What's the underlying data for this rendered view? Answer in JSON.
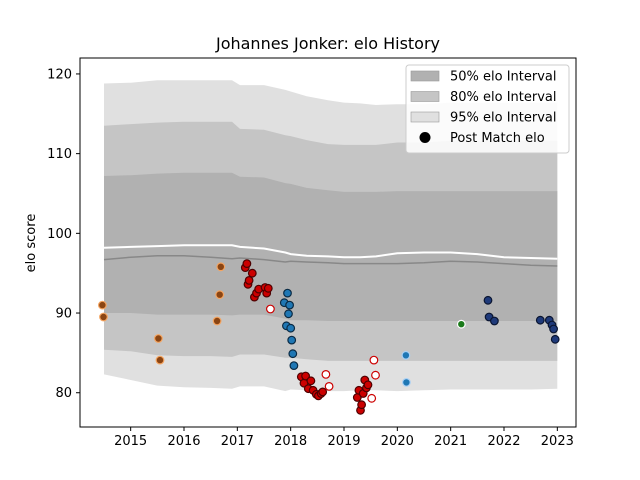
{
  "chart_data": {
    "type": "scatter",
    "title": "Johannes Jonker: elo History",
    "xlabel": "",
    "ylabel": "elo score",
    "xlim": [
      2014.05,
      2023.35
    ],
    "ylim": [
      75.7,
      122
    ],
    "x_ticks": [
      2015,
      2016,
      2017,
      2018,
      2019,
      2020,
      2021,
      2022,
      2023
    ],
    "y_ticks": [
      80,
      90,
      100,
      110,
      120
    ],
    "grid": false,
    "legend_position": "top-right",
    "legend": [
      {
        "label": "50% elo Interval",
        "kind": "patch",
        "color": "#b1b1b1"
      },
      {
        "label": "80% elo Interval",
        "kind": "patch",
        "color": "#c5c5c5"
      },
      {
        "label": "95% elo Interval",
        "kind": "patch",
        "color": "#e0e0e0"
      },
      {
        "label": "Post Match elo",
        "kind": "marker",
        "color": "#000000"
      }
    ],
    "colors": {
      "band50": "#b1b1b1",
      "band80": "#c5c5c5",
      "band95": "#e0e0e0",
      "mean_line": "#ffffff",
      "median_line": "#888888"
    },
    "x_band": [
      2014.5,
      2015.0,
      2015.5,
      2016.0,
      2016.5,
      2016.9,
      2017.05,
      2017.5,
      2017.9,
      2018.0,
      2018.3,
      2018.7,
      2019.0,
      2019.3,
      2019.6,
      2020.0,
      2020.5,
      2021.0,
      2021.5,
      2022.0,
      2022.5,
      2023.0
    ],
    "series": [
      {
        "name": "95% elo Interval",
        "lower": [
          82.3,
          81.6,
          80.9,
          80.7,
          80.6,
          80.5,
          80.8,
          80.8,
          80.2,
          80.4,
          80.3,
          80.2,
          80.2,
          80.3,
          80.3,
          80.2,
          80.3,
          80.4,
          80.4,
          80.4,
          80.4,
          80.5
        ],
        "upper": [
          118.8,
          118.9,
          119.2,
          119.2,
          119.2,
          119.2,
          118.6,
          118.6,
          118.0,
          117.8,
          117.2,
          116.7,
          116.4,
          116.3,
          116.1,
          116.2,
          116.2,
          116.4,
          116.4,
          116.4,
          116.4,
          116.4
        ]
      },
      {
        "name": "80% elo Interval",
        "lower": [
          85.4,
          85.2,
          84.7,
          84.6,
          84.6,
          84.5,
          84.8,
          84.8,
          84.4,
          84.4,
          84.2,
          84.0,
          84.0,
          84.0,
          84.0,
          84.0,
          84.0,
          84.0,
          84.0,
          84.0,
          84.0,
          84.0
        ],
        "upper": [
          113.5,
          113.7,
          113.9,
          114.0,
          114.0,
          114.0,
          113.1,
          113.0,
          112.3,
          112.2,
          111.7,
          111.2,
          111.1,
          111.1,
          111.1,
          111.4,
          111.4,
          111.6,
          111.6,
          111.6,
          111.6,
          111.6
        ]
      },
      {
        "name": "50% elo Interval",
        "lower": [
          90.0,
          90.0,
          89.8,
          89.8,
          89.8,
          89.7,
          89.8,
          89.8,
          89.3,
          89.1,
          89.1,
          89.0,
          89.0,
          89.0,
          89.0,
          89.0,
          89.0,
          89.0,
          89.0,
          89.0,
          89.0,
          89.0
        ],
        "upper": [
          107.2,
          107.3,
          107.5,
          107.6,
          107.6,
          107.6,
          107.1,
          107.0,
          106.3,
          106.2,
          105.7,
          105.4,
          105.2,
          105.2,
          105.2,
          105.3,
          105.3,
          105.3,
          105.3,
          105.3,
          105.3,
          105.3
        ]
      },
      {
        "name": "",
        "line": "mean",
        "values": [
          98.2,
          98.3,
          98.4,
          98.5,
          98.5,
          98.5,
          98.3,
          98.1,
          97.6,
          97.4,
          97.2,
          97.1,
          97.0,
          97.0,
          97.1,
          97.5,
          97.6,
          97.6,
          97.4,
          97.0,
          96.9,
          96.8
        ]
      },
      {
        "name": "",
        "line": "median",
        "values": [
          96.7,
          97.0,
          97.2,
          97.2,
          97.0,
          96.8,
          96.9,
          96.7,
          96.4,
          96.5,
          96.4,
          96.3,
          96.2,
          96.2,
          96.2,
          96.2,
          96.3,
          96.5,
          96.4,
          96.2,
          96.0,
          95.9
        ]
      }
    ],
    "points": [
      {
        "x": 2014.47,
        "y": 91.0,
        "fill": "#8B4513",
        "edge": "#f4a460"
      },
      {
        "x": 2014.49,
        "y": 89.5,
        "fill": "#8B4513",
        "edge": "#f4a460"
      },
      {
        "x": 2015.52,
        "y": 86.8,
        "fill": "#8B4513",
        "edge": "#f4a460"
      },
      {
        "x": 2015.55,
        "y": 84.1,
        "fill": "#8B4513",
        "edge": "#f4a460"
      },
      {
        "x": 2016.62,
        "y": 89.0,
        "fill": "#8B4513",
        "edge": "#f4a460"
      },
      {
        "x": 2016.67,
        "y": 92.3,
        "fill": "#8B4513",
        "edge": "#f4a460"
      },
      {
        "x": 2016.69,
        "y": 95.8,
        "fill": "#8B4513",
        "edge": "#f4a460"
      },
      {
        "x": 2017.15,
        "y": 95.7,
        "fill": "#cc0000",
        "edge": "#4d0000"
      },
      {
        "x": 2017.18,
        "y": 96.2,
        "fill": "#cc0000",
        "edge": "#4d0000"
      },
      {
        "x": 2017.2,
        "y": 93.6,
        "fill": "#cc0000",
        "edge": "#4d0000"
      },
      {
        "x": 2017.22,
        "y": 94.1,
        "fill": "#cc0000",
        "edge": "#4d0000"
      },
      {
        "x": 2017.28,
        "y": 95.0,
        "fill": "#cc0000",
        "edge": "#4d0000"
      },
      {
        "x": 2017.32,
        "y": 92.0,
        "fill": "#cc0000",
        "edge": "#4d0000"
      },
      {
        "x": 2017.36,
        "y": 92.5,
        "fill": "#cc0000",
        "edge": "#4d0000"
      },
      {
        "x": 2017.4,
        "y": 93.0,
        "fill": "#cc0000",
        "edge": "#4d0000"
      },
      {
        "x": 2017.52,
        "y": 93.2,
        "fill": "#cc0000",
        "edge": "#4d0000"
      },
      {
        "x": 2017.55,
        "y": 92.5,
        "fill": "#cc0000",
        "edge": "#4d0000"
      },
      {
        "x": 2017.58,
        "y": 93.1,
        "fill": "#cc0000",
        "edge": "#4d0000"
      },
      {
        "x": 2017.62,
        "y": 90.5,
        "fill": "#ffffff",
        "edge": "#cc0000"
      },
      {
        "x": 2017.88,
        "y": 91.3,
        "fill": "#1f77b4",
        "edge": "#0a2a44"
      },
      {
        "x": 2017.92,
        "y": 88.4,
        "fill": "#1f77b4",
        "edge": "#0a2a44"
      },
      {
        "x": 2017.94,
        "y": 92.5,
        "fill": "#1f77b4",
        "edge": "#0a2a44"
      },
      {
        "x": 2017.96,
        "y": 89.9,
        "fill": "#1f77b4",
        "edge": "#0a2a44"
      },
      {
        "x": 2017.98,
        "y": 91.0,
        "fill": "#1f77b4",
        "edge": "#0a2a44"
      },
      {
        "x": 2018.0,
        "y": 88.1,
        "fill": "#1f77b4",
        "edge": "#0a2a44"
      },
      {
        "x": 2018.02,
        "y": 86.6,
        "fill": "#1f77b4",
        "edge": "#0a2a44"
      },
      {
        "x": 2018.04,
        "y": 84.9,
        "fill": "#1f77b4",
        "edge": "#0a2a44"
      },
      {
        "x": 2018.06,
        "y": 83.4,
        "fill": "#1f77b4",
        "edge": "#0a2a44"
      },
      {
        "x": 2018.2,
        "y": 82.0,
        "fill": "#cc0000",
        "edge": "#4d0000"
      },
      {
        "x": 2018.25,
        "y": 81.2,
        "fill": "#cc0000",
        "edge": "#4d0000"
      },
      {
        "x": 2018.28,
        "y": 82.1,
        "fill": "#cc0000",
        "edge": "#4d0000"
      },
      {
        "x": 2018.33,
        "y": 80.5,
        "fill": "#cc0000",
        "edge": "#4d0000"
      },
      {
        "x": 2018.38,
        "y": 81.5,
        "fill": "#cc0000",
        "edge": "#4d0000"
      },
      {
        "x": 2018.42,
        "y": 80.3,
        "fill": "#cc0000",
        "edge": "#4d0000"
      },
      {
        "x": 2018.48,
        "y": 79.8,
        "fill": "#cc0000",
        "edge": "#4d0000"
      },
      {
        "x": 2018.52,
        "y": 79.6,
        "fill": "#cc0000",
        "edge": "#4d0000"
      },
      {
        "x": 2018.57,
        "y": 79.9,
        "fill": "#cc0000",
        "edge": "#4d0000"
      },
      {
        "x": 2018.6,
        "y": 80.1,
        "fill": "#cc0000",
        "edge": "#4d0000"
      },
      {
        "x": 2018.66,
        "y": 82.3,
        "fill": "#ffffff",
        "edge": "#cc0000"
      },
      {
        "x": 2018.72,
        "y": 80.8,
        "fill": "#ffffff",
        "edge": "#cc0000"
      },
      {
        "x": 2019.25,
        "y": 79.4,
        "fill": "#cc0000",
        "edge": "#4d0000"
      },
      {
        "x": 2019.28,
        "y": 80.3,
        "fill": "#cc0000",
        "edge": "#4d0000"
      },
      {
        "x": 2019.31,
        "y": 77.8,
        "fill": "#cc0000",
        "edge": "#4d0000"
      },
      {
        "x": 2019.33,
        "y": 78.5,
        "fill": "#cc0000",
        "edge": "#4d0000"
      },
      {
        "x": 2019.36,
        "y": 79.9,
        "fill": "#cc0000",
        "edge": "#4d0000"
      },
      {
        "x": 2019.39,
        "y": 81.6,
        "fill": "#cc0000",
        "edge": "#4d0000"
      },
      {
        "x": 2019.42,
        "y": 80.6,
        "fill": "#cc0000",
        "edge": "#4d0000"
      },
      {
        "x": 2019.45,
        "y": 81.0,
        "fill": "#cc0000",
        "edge": "#4d0000"
      },
      {
        "x": 2019.52,
        "y": 79.3,
        "fill": "#ffffff",
        "edge": "#cc0000"
      },
      {
        "x": 2019.56,
        "y": 84.1,
        "fill": "#ffffff",
        "edge": "#cc0000"
      },
      {
        "x": 2019.59,
        "y": 82.2,
        "fill": "#ffffff",
        "edge": "#cc0000"
      },
      {
        "x": 2020.16,
        "y": 84.7,
        "fill": "#1f77b4",
        "edge": "#a9d0f5"
      },
      {
        "x": 2020.17,
        "y": 81.3,
        "fill": "#1f77b4",
        "edge": "#a9d0f5"
      },
      {
        "x": 2021.2,
        "y": 88.6,
        "fill": "#1a7a1a",
        "edge": "#ffffff"
      },
      {
        "x": 2021.7,
        "y": 91.6,
        "fill": "#1f3a7a",
        "edge": "#0a1530"
      },
      {
        "x": 2021.72,
        "y": 89.5,
        "fill": "#1f3a7a",
        "edge": "#0a1530"
      },
      {
        "x": 2021.82,
        "y": 89.0,
        "fill": "#1f3a7a",
        "edge": "#0a1530"
      },
      {
        "x": 2022.68,
        "y": 89.1,
        "fill": "#1f3a7a",
        "edge": "#0a1530"
      },
      {
        "x": 2022.85,
        "y": 89.1,
        "fill": "#1f3a7a",
        "edge": "#0a1530"
      },
      {
        "x": 2022.9,
        "y": 88.5,
        "fill": "#1f3a7a",
        "edge": "#0a1530"
      },
      {
        "x": 2022.93,
        "y": 88.0,
        "fill": "#1f3a7a",
        "edge": "#0a1530"
      },
      {
        "x": 2022.96,
        "y": 86.7,
        "fill": "#1f3a7a",
        "edge": "#0a1530"
      }
    ]
  }
}
